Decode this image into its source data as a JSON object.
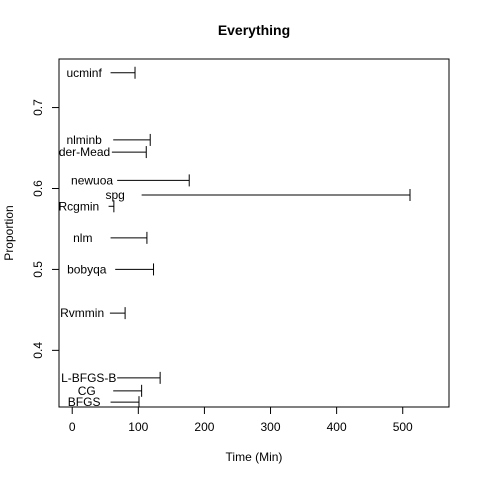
{
  "chart_data": {
    "type": "scatter",
    "title": "Everything",
    "xlabel": "Time (Min)",
    "ylabel": "Proportion",
    "xlim": [
      -20,
      570
    ],
    "ylim": [
      0.33,
      0.76
    ],
    "x_ticks": [
      0,
      100,
      200,
      300,
      400,
      500
    ],
    "x_tick_labels": [
      "0",
      "100",
      "200",
      "300",
      "400",
      "500"
    ],
    "y_ticks": [
      0.4,
      0.5,
      0.6,
      0.7
    ],
    "y_tick_labels": [
      "0.4",
      "0.5",
      "0.6",
      "0.7"
    ],
    "grid": false,
    "legend": "none",
    "points": [
      {
        "label": "ucminf",
        "x": 18,
        "y": 0.743,
        "x_min": 58,
        "x_max": 95
      },
      {
        "label": "nlminb",
        "x": 18,
        "y": 0.66,
        "x_min": 62,
        "x_max": 118
      },
      {
        "label": "Nelder-Mead",
        "x": 5,
        "y": 0.645,
        "x_min": 60,
        "x_max": 112
      },
      {
        "label": "newuoa",
        "x": 30,
        "y": 0.61,
        "x_min": 68,
        "x_max": 177
      },
      {
        "label": "spg",
        "x": 65,
        "y": 0.592,
        "x_min": 105,
        "x_max": 511
      },
      {
        "label": "Rcgmin",
        "x": 10,
        "y": 0.578,
        "x_min": 55,
        "x_max": 63
      },
      {
        "label": "nlm",
        "x": 16,
        "y": 0.539,
        "x_min": 58,
        "x_max": 113
      },
      {
        "label": "bobyqa",
        "x": 22,
        "y": 0.5,
        "x_min": 65,
        "x_max": 123
      },
      {
        "label": "Rvmmin",
        "x": 15,
        "y": 0.446,
        "x_min": 57,
        "x_max": 80
      },
      {
        "label": "L-BFGS-B",
        "x": 25,
        "y": 0.366,
        "x_min": 68,
        "x_max": 133
      },
      {
        "label": "CG",
        "x": 22,
        "y": 0.35,
        "x_min": 62,
        "x_max": 105
      },
      {
        "label": "BFGS",
        "x": 18,
        "y": 0.336,
        "x_min": 58,
        "x_max": 101
      }
    ]
  }
}
